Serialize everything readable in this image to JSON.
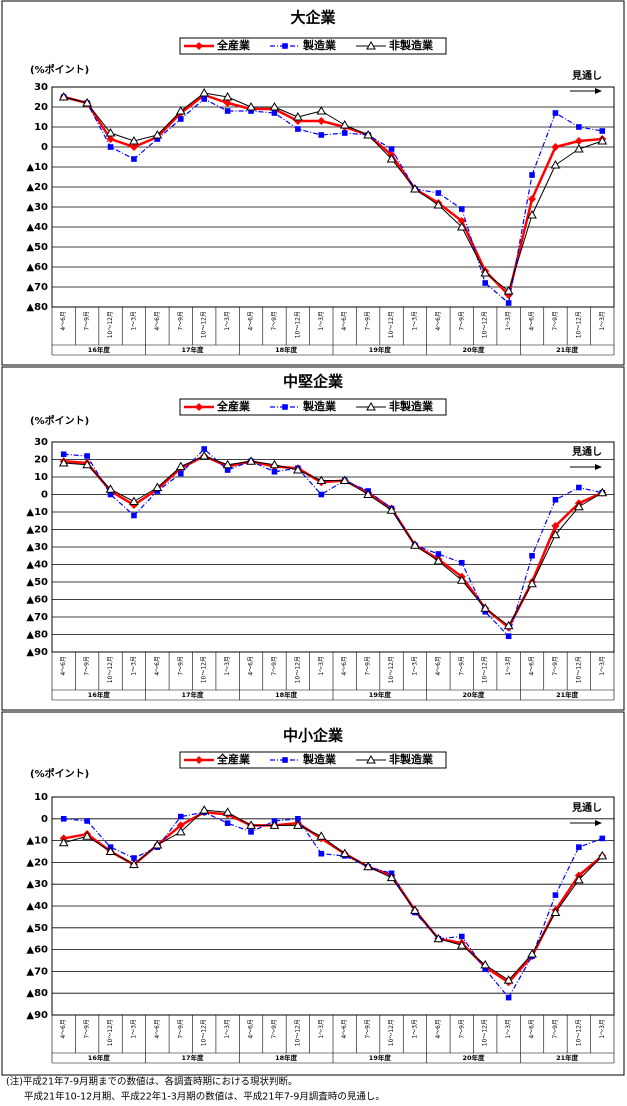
{
  "chart_data": [
    {
      "type": "line",
      "title": "大企業",
      "y_unit": "(%ポイント)",
      "annotation": "見通し",
      "categories": [
        "4～6月",
        "7～9月",
        "10～12月",
        "1～3月",
        "4～6月",
        "7～9月",
        "10～12月",
        "1～3月",
        "4～6月",
        "7～9月",
        "10～12月",
        "1～3月",
        "4～6月",
        "7～9月",
        "10～12月",
        "1～3月",
        "4～6月",
        "7～9月",
        "10～12月",
        "1～3月",
        "4～6月",
        "7～9月",
        "10～12月",
        "1～3月"
      ],
      "groups": [
        "16年度",
        "17年度",
        "18年度",
        "19年度",
        "20年度",
        "21年度"
      ],
      "ylim": [
        -80,
        30
      ],
      "yticks": [
        30,
        20,
        10,
        0,
        {
          "value": -10,
          "label": "▲10"
        },
        {
          "value": -20,
          "label": "▲20"
        },
        {
          "value": -30,
          "label": "▲30"
        },
        {
          "value": -40,
          "label": "▲40"
        },
        {
          "value": -50,
          "label": "▲50"
        },
        {
          "value": -60,
          "label": "▲60"
        },
        {
          "value": -70,
          "label": "▲70"
        },
        {
          "value": -80,
          "label": "▲80"
        }
      ],
      "grid": true,
      "series": [
        {
          "name": "全産業",
          "color": "#ff0000",
          "marker": "diamond",
          "line_style": "solid",
          "values": [
            25,
            22,
            4,
            0,
            5,
            17,
            26,
            22,
            19,
            19,
            13,
            13,
            10,
            6,
            -4,
            -21,
            -28,
            -37,
            -62,
            -74,
            -26,
            0,
            3,
            4
          ]
        },
        {
          "name": "製造業",
          "color": "#0000ff",
          "marker": "square",
          "line_style": "dashdot",
          "values": [
            25,
            22,
            0,
            -6,
            4,
            14,
            24,
            18,
            18,
            17,
            9,
            6,
            7,
            6,
            -1,
            -21,
            -23,
            -31,
            -68,
            -78,
            -14,
            17,
            10,
            8
          ]
        },
        {
          "name": "非製造業",
          "color": "#000000",
          "marker": "triangle",
          "line_style": "thin",
          "values": [
            25,
            22,
            7,
            3,
            6,
            18,
            27,
            25,
            20,
            20,
            15,
            18,
            11,
            6,
            -6,
            -21,
            -29,
            -40,
            -63,
            -72,
            -34,
            -9,
            -1,
            3
          ]
        }
      ]
    },
    {
      "type": "line",
      "title": "中堅企業",
      "y_unit": "(%ポイント)",
      "annotation": "見通し",
      "categories": [
        "4～6月",
        "7～9月",
        "10～12月",
        "1～3月",
        "4～6月",
        "7～9月",
        "10～12月",
        "1～3月",
        "4～6月",
        "7～9月",
        "10～12月",
        "1～3月",
        "4～6月",
        "7～9月",
        "10～12月",
        "1～3月",
        "4～6月",
        "7～9月",
        "10～12月",
        "1～3月",
        "4～6月",
        "7～9月",
        "10～12月",
        "1～3月"
      ],
      "groups": [
        "16年度",
        "17年度",
        "18年度",
        "19年度",
        "20年度",
        "21年度"
      ],
      "ylim": [
        -90,
        30
      ],
      "yticks": [
        30,
        20,
        10,
        0,
        {
          "value": -10,
          "label": "▲10"
        },
        {
          "value": -20,
          "label": "▲20"
        },
        {
          "value": -30,
          "label": "▲30"
        },
        {
          "value": -40,
          "label": "▲40"
        },
        {
          "value": -50,
          "label": "▲50"
        },
        {
          "value": -60,
          "label": "▲60"
        },
        {
          "value": -70,
          "label": "▲70"
        },
        {
          "value": -80,
          "label": "▲80"
        },
        {
          "value": -90,
          "label": "▲90"
        }
      ],
      "grid": true,
      "series": [
        {
          "name": "全産業",
          "color": "#ff0000",
          "marker": "diamond",
          "line_style": "solid",
          "values": [
            19,
            18,
            2,
            -6,
            3,
            15,
            22,
            16,
            19,
            16,
            15,
            7,
            8,
            1,
            -8,
            -29,
            -37,
            -47,
            -65,
            -76,
            -50,
            -18,
            -5,
            1
          ]
        },
        {
          "name": "製造業",
          "color": "#0000ff",
          "marker": "square",
          "line_style": "dashdot",
          "values": [
            23,
            22,
            0,
            -12,
            2,
            12,
            26,
            14,
            19,
            13,
            15,
            0,
            8,
            2,
            -8,
            -29,
            -34,
            -39,
            -67,
            -81,
            -35,
            -3,
            4,
            1
          ]
        },
        {
          "name": "非製造業",
          "color": "#000000",
          "marker": "triangle",
          "line_style": "thin",
          "values": [
            18,
            17,
            3,
            -4,
            4,
            16,
            22,
            17,
            19,
            17,
            14,
            8,
            8,
            0,
            -9,
            -29,
            -38,
            -49,
            -65,
            -75,
            -51,
            -23,
            -7,
            1
          ]
        }
      ]
    },
    {
      "type": "line",
      "title": "中小企業",
      "y_unit": "(%ポイント)",
      "annotation": "見通し",
      "categories": [
        "4～6月",
        "7～9月",
        "10～12月",
        "1～3月",
        "4～6月",
        "7～9月",
        "10～12月",
        "1～3月",
        "4～6月",
        "7～9月",
        "10～12月",
        "1～3月",
        "4～6月",
        "7～9月",
        "10～12月",
        "1～3月",
        "4～6月",
        "7～9月",
        "10～12月",
        "1～3月",
        "4～6月",
        "7～9月",
        "10～12月",
        "1～3月"
      ],
      "groups": [
        "16年度",
        "17年度",
        "18年度",
        "19年度",
        "20年度",
        "21年度"
      ],
      "ylim": [
        -90,
        10
      ],
      "yticks": [
        10,
        0,
        {
          "value": -10,
          "label": "▲10"
        },
        {
          "value": -20,
          "label": "▲20"
        },
        {
          "value": -30,
          "label": "▲30"
        },
        {
          "value": -40,
          "label": "▲40"
        },
        {
          "value": -50,
          "label": "▲50"
        },
        {
          "value": -60,
          "label": "▲60"
        },
        {
          "value": -70,
          "label": "▲70"
        },
        {
          "value": -80,
          "label": "▲80"
        },
        {
          "value": -90,
          "label": "▲90"
        }
      ],
      "grid": true,
      "series": [
        {
          "name": "全産業",
          "color": "#ff0000",
          "marker": "diamond",
          "line_style": "solid",
          "values": [
            -9,
            -7,
            -15,
            -21,
            -12,
            -3,
            3,
            2,
            -3,
            -3,
            -2,
            -9,
            -16,
            -22,
            -26,
            -42,
            -55,
            -57,
            -68,
            -75,
            -63,
            -42,
            -26,
            -17
          ]
        },
        {
          "name": "製造業",
          "color": "#0000ff",
          "marker": "square",
          "line_style": "dashdot",
          "values": [
            0,
            -1,
            -13,
            -18,
            -13,
            1,
            3,
            -2,
            -6,
            -1,
            0,
            -16,
            -17,
            -22,
            -25,
            -43,
            -55,
            -54,
            -69,
            -82,
            -63,
            -35,
            -13,
            -9
          ]
        },
        {
          "name": "非製造業",
          "color": "#000000",
          "marker": "triangle",
          "line_style": "thin",
          "values": [
            -11,
            -8,
            -15,
            -21,
            -12,
            -6,
            4,
            3,
            -3,
            -3,
            -3,
            -8,
            -16,
            -22,
            -27,
            -42,
            -55,
            -58,
            -67,
            -74,
            -62,
            -43,
            -28,
            -17
          ]
        }
      ]
    }
  ],
  "note": [
    "(注)平成21年7-9月期までの数値は、各調査時期における現状判断。",
    "平成21年10-12月期、平成22年1-3月期の数値は、平成21年7-9月調査時の見通し。"
  ]
}
